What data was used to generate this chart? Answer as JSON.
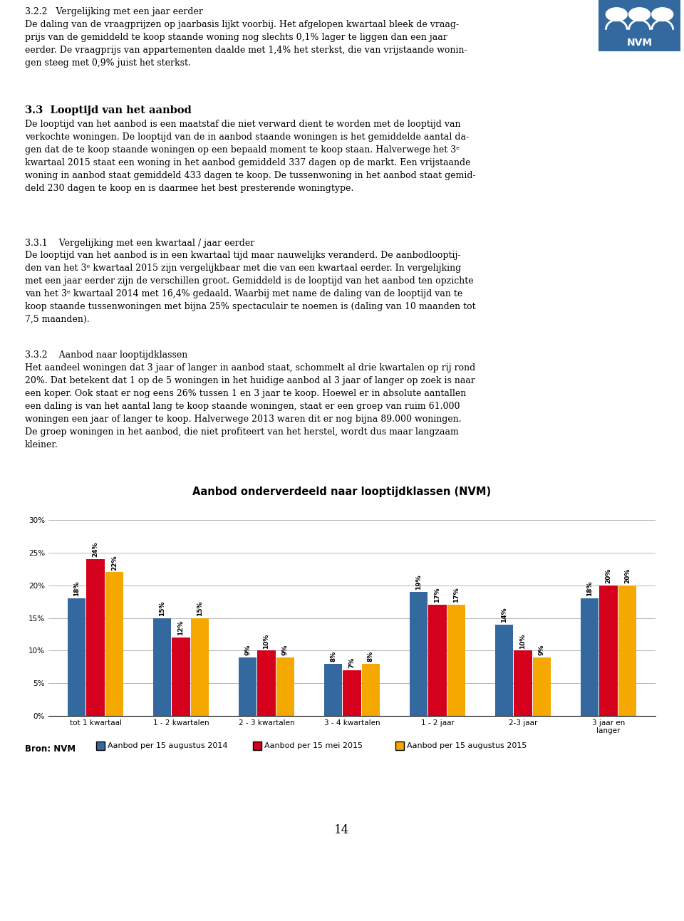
{
  "title": "Aanbod onderverdeeld naar looptijdklassen (NVM)",
  "categories": [
    "tot 1 kwartaal",
    "1 - 2 kwartalen",
    "2 - 3 kwartalen",
    "3 - 4 kwartalen",
    "1 - 2 jaar",
    "2-3 jaar",
    "3 jaar en\nlanger"
  ],
  "series": [
    {
      "name": "Aanbod per 15 augustus 2014",
      "color": "#3469A0",
      "values": [
        18,
        15,
        9,
        8,
        19,
        14,
        18
      ]
    },
    {
      "name": "Aanbod per 15 mei 2015",
      "color": "#D4001C",
      "values": [
        24,
        12,
        10,
        7,
        17,
        10,
        20
      ]
    },
    {
      "name": "Aanbod per 15 augustus 2015",
      "color": "#F5A800",
      "values": [
        22,
        15,
        9,
        8,
        17,
        9,
        20
      ]
    }
  ],
  "ylim": [
    0,
    30
  ],
  "yticks": [
    0,
    5,
    10,
    15,
    20,
    25,
    30
  ],
  "ytick_labels": [
    "0%",
    "5%",
    "10%",
    "15%",
    "20%",
    "25%",
    "30%"
  ],
  "bar_width": 0.22,
  "title_fontsize": 10.5,
  "tick_fontsize": 7.5,
  "bar_label_fontsize": 6.5,
  "legend_fontsize": 8,
  "body_fontsize": 9.0,
  "source_label": "Bron: NVM",
  "page_number": "14",
  "background_color": "#FFFFFF",
  "grid_color": "#AAAAAA",
  "text_color": "#000000",
  "nvm_color": "#3469A0",
  "heading_322": "3.2.2   Vergelijking met een jaar eerder",
  "para_322": "De daling van de vraagprijzen op jaarbasis lijkt voorbij. Het afgelopen kwartaal bleek de vraag-\nprijs van de gemiddeld te koop staande woning nog slechts 0,1% lager te liggen dan een jaar\neerder. De vraagprijs van appartementen daalde met 1,4% het sterkst, die van vrijstaande wonin-\ngen steeg met 0,9% juist het sterkst.",
  "heading_33": "3.3  Looptijd van het aanbod",
  "para_33": "De looptijd van het aanbod is een maatstaf die niet verward dient te worden met de looptijd van\nverkochte woningen. De looptijd van de in aanbod staande woningen is het gemiddelde aantal da-\ngen dat de te koop staande woningen op een bepaald moment te koop staan. Halverwege het 3ᵉ\nkwartaal 2015 staat een woning in het aanbod gemiddeld 337 dagen op de markt. Een vrijstaande\nwoning in aanbod staat gemiddeld 433 dagen te koop. De tussenwoning in het aanbod staat gemid-\ndeld 230 dagen te koop en is daarmee het best presterende woningtype.",
  "heading_331": "3.3.1    Vergelijking met een kwartaal / jaar eerder",
  "para_331": "De looptijd van het aanbod is in een kwartaal tijd maar nauwelijks veranderd. De aanbodlooptij-\nden van het 3ᵉ kwartaal 2015 zijn vergelijkbaar met die van een kwartaal eerder. In vergelijking\nmet een jaar eerder zijn de verschillen groot. Gemiddeld is de looptijd van het aanbod ten opzichte\nvan het 3ᵉ kwartaal 2014 met 16,4% gedaald. Waarbij met name de daling van de looptijd van te\nkoop staande tussenwoningen met bijna 25% spectaculair te noemen is (daling van 10 maanden tot\n7,5 maanden).",
  "heading_332": "3.3.2    Aanbod naar looptijdklassen",
  "para_332": "Het aandeel woningen dat 3 jaar of langer in aanbod staat, schommelt al drie kwartalen op rij rond\n20%. Dat betekent dat 1 op de 5 woningen in het huidige aanbod al 3 jaar of langer op zoek is naar\neen koper. Ook staat er nog eens 26% tussen 1 en 3 jaar te koop. Hoewel er in absolute aantallen\neen daling is van het aantal lang te koop staande woningen, staat er een groep van ruim 61.000\nwoningen een jaar of langer te koop. Halverwege 2013 waren dit er nog bijna 89.000 woningen.\nDe groep woningen in het aanbod, die niet profiteert van het herstel, wordt dus maar langzaam\nkleiner."
}
